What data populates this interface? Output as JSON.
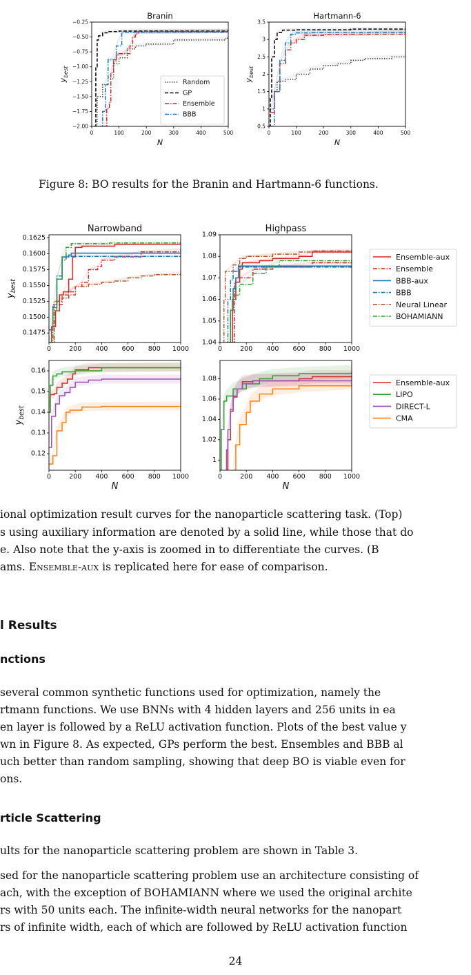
{
  "figure8": {
    "caption": "Figure 8: BO results for the Branin and Hartmann-6 functions."
  },
  "figure9": {
    "caption_lines": [
      "ional optimization result curves for the nanoparticle scattering task. (Top)",
      "s using auxiliary information are denoted by a solid line, while those that do",
      "e.  Also note that the y-axis is zoomed in to differentiate the curves.  (B",
      "ams. "
    ],
    "caption_smallcaps": "Ensemble-aux",
    "caption_tail": " is replicated here for ease of comparison."
  },
  "sections": {
    "results_heading": "l Results",
    "functions_heading": "nctions",
    "functions_lines": [
      " several common synthetic functions used for optimization, namely the",
      "rtmann functions. We use BNNs with 4 hidden layers and 256 units in ea",
      "en layer is followed by a ReLU activation function. Plots of the best value y",
      "wn in Figure 8. As expected, GPs perform the best. Ensembles and BBB al",
      "uch better than random sampling, showing that deep BO is viable even for",
      "ons."
    ],
    "scattering_heading": "rticle Scattering",
    "scattering_line1": "ults for the nanoparticle scattering problem are shown in Table 3.",
    "scattering_lines": [
      "sed for the nanoparticle scattering problem use an architecture consisting of",
      "ach, with the exception of BOHAMIANN where we used the original archite",
      "rs with 50 units each. The infinite-width neural networks for the nanopart",
      "rs of infinite width, each of which are followed by ReLU activation function"
    ]
  },
  "page_number": "24",
  "colors": {
    "ensemble": "#d62728",
    "bbb": "#1f77b4",
    "neural_linear": "#b5562b",
    "bohamiann": "#2ca02c",
    "lipo": "#2ca02c",
    "direct_l": "#9b4fb5",
    "cma": "#ff7f0e",
    "gp": "#000000",
    "random": "#222222"
  },
  "chart_data": [
    {
      "type": "line",
      "title": "Branin",
      "xlabel": "N",
      "ylabel": "y_best",
      "xlim": [
        0,
        500
      ],
      "ylim": [
        -2.0,
        -0.25
      ],
      "xticks": [
        0,
        100,
        200,
        300,
        400,
        500
      ],
      "yticks": [
        -2.0,
        -1.75,
        -1.5,
        -1.25,
        -1.0,
        -0.75,
        -0.5,
        -0.25
      ],
      "ytick_labels": [
        "−2.00",
        "−1.75",
        "−1.50",
        "−1.25",
        "−1.00",
        "−0.75",
        "−0.50",
        "−0.25"
      ],
      "legend": [
        "Random",
        "GP",
        "Ensemble",
        "BBB"
      ],
      "legend_position": "lower right",
      "series": [
        {
          "name": "Random",
          "style": "dotted",
          "x": [
            10,
            20,
            40,
            60,
            80,
            100,
            130,
            160,
            200,
            290,
            300,
            400,
            490,
            500
          ],
          "y": [
            -2.0,
            -1.5,
            -1.3,
            -1.2,
            -0.95,
            -0.85,
            -0.7,
            -0.65,
            -0.62,
            -0.62,
            -0.55,
            -0.55,
            -0.52,
            -0.5
          ]
        },
        {
          "name": "GP",
          "style": "dashed",
          "x": [
            10,
            15,
            20,
            25,
            40,
            60,
            100,
            500
          ],
          "y": [
            -2.0,
            -1.0,
            -0.55,
            -0.48,
            -0.43,
            -0.41,
            -0.4,
            -0.4
          ]
        },
        {
          "name": "Ensemble",
          "style": "dashdot",
          "x": [
            45,
            55,
            65,
            70,
            80,
            90,
            100,
            120,
            140,
            150,
            160,
            170,
            500
          ],
          "y": [
            -2.0,
            -1.7,
            -1.6,
            -1.1,
            -0.9,
            -0.8,
            -0.78,
            -0.78,
            -0.65,
            -0.5,
            -0.45,
            -0.41,
            -0.4
          ]
        },
        {
          "name": "BBB",
          "style": "dashdot",
          "x": [
            30,
            40,
            50,
            60,
            75,
            90,
            110,
            500
          ],
          "y": [
            -2.0,
            -1.75,
            -1.3,
            -0.88,
            -0.88,
            -0.65,
            -0.42,
            -0.4
          ]
        }
      ]
    },
    {
      "type": "line",
      "title": "Hartmann-6",
      "xlabel": "N",
      "ylabel": "y_best",
      "xlim": [
        0,
        500
      ],
      "ylim": [
        0.5,
        3.5
      ],
      "xticks": [
        0,
        100,
        200,
        300,
        400,
        500
      ],
      "yticks": [
        0.5,
        1.0,
        1.5,
        2.0,
        2.5,
        3.0,
        3.5
      ],
      "series": [
        {
          "name": "Random",
          "style": "dotted",
          "x": [
            5,
            20,
            30,
            60,
            100,
            150,
            200,
            250,
            300,
            350,
            450,
            500
          ],
          "y": [
            1.0,
            1.5,
            1.8,
            1.85,
            2.0,
            2.15,
            2.25,
            2.3,
            2.4,
            2.45,
            2.5,
            2.52
          ]
        },
        {
          "name": "GP",
          "style": "dashed",
          "x": [
            0,
            5,
            10,
            20,
            30,
            50,
            100,
            300,
            500
          ],
          "y": [
            0.5,
            1.3,
            2.5,
            3.0,
            3.2,
            3.27,
            3.28,
            3.3,
            3.32
          ]
        },
        {
          "name": "Ensemble",
          "style": "dashdot",
          "x": [
            5,
            20,
            40,
            60,
            80,
            100,
            130,
            200,
            300,
            500
          ],
          "y": [
            0.9,
            1.5,
            2.3,
            2.7,
            2.9,
            3.0,
            3.12,
            3.14,
            3.15,
            3.22
          ]
        },
        {
          "name": "BBB",
          "style": "dashdot",
          "x": [
            5,
            20,
            40,
            60,
            80,
            100,
            150,
            500
          ],
          "y": [
            0.5,
            1.5,
            2.4,
            2.9,
            3.15,
            3.19,
            3.2,
            3.22
          ]
        }
      ]
    },
    {
      "type": "line",
      "title": "Narrowband",
      "xlabel": "",
      "ylabel": "y_best",
      "xlim": [
        0,
        1000
      ],
      "ylim": [
        0.146,
        0.163
      ],
      "xticks": [
        0,
        200,
        400,
        600,
        800,
        1000
      ],
      "yticks": [
        0.1475,
        0.15,
        0.1525,
        0.155,
        0.1575,
        0.16,
        0.1625
      ],
      "ytick_labels": [
        "0.1475",
        "0.1500",
        "0.1525",
        "0.1550",
        "0.1575",
        "0.1600",
        "0.1625"
      ],
      "legend": [
        "Ensemble-aux",
        "Ensemble",
        "BBB-aux",
        "BBB",
        "Neural Linear",
        "BOHAMIANN"
      ],
      "legend_position": "outside right",
      "series": [
        {
          "name": "Ensemble-aux",
          "style": "solid",
          "x": [
            0,
            20,
            50,
            80,
            110,
            150,
            180,
            200,
            250,
            500,
            1000
          ],
          "y": [
            0.146,
            0.1485,
            0.151,
            0.1535,
            0.154,
            0.156,
            0.1595,
            0.161,
            0.1612,
            0.1615,
            0.1617
          ]
        },
        {
          "name": "Ensemble",
          "style": "dashdot",
          "x": [
            0,
            40,
            100,
            150,
            200,
            250,
            300,
            370,
            400,
            500,
            700,
            1000
          ],
          "y": [
            0.146,
            0.152,
            0.153,
            0.154,
            0.1548,
            0.1555,
            0.1575,
            0.158,
            0.159,
            0.1595,
            0.1603,
            0.1607
          ]
        },
        {
          "name": "BBB-aux",
          "style": "solid",
          "x": [
            0,
            30,
            60,
            100,
            150,
            170,
            1000
          ],
          "y": [
            0.148,
            0.1515,
            0.156,
            0.1595,
            0.1598,
            0.1601,
            0.1601
          ]
        },
        {
          "name": "BBB",
          "style": "dashdot",
          "x": [
            0,
            30,
            60,
            100,
            130,
            1000
          ],
          "y": [
            0.148,
            0.152,
            0.1565,
            0.159,
            0.1596,
            0.1596
          ]
        },
        {
          "name": "Neural Linear",
          "style": "dashdot",
          "x": [
            0,
            40,
            100,
            200,
            300,
            400,
            500,
            600,
            700,
            800,
            1000
          ],
          "y": [
            0.146,
            0.1525,
            0.1535,
            0.1548,
            0.1552,
            0.1555,
            0.1557,
            0.1562,
            0.1565,
            0.1567,
            0.157
          ]
        },
        {
          "name": "BOHAMIANN",
          "style": "dashdot",
          "x": [
            0,
            30,
            60,
            100,
            130,
            170,
            460
          ],
          "y": [
            0.146,
            0.151,
            0.156,
            0.1595,
            0.161,
            0.1616,
            0.1617
          ]
        }
      ]
    },
    {
      "type": "line",
      "title": "Highpass",
      "xlabel": "",
      "ylabel": "",
      "xlim": [
        0,
        1000
      ],
      "ylim": [
        1.04,
        1.09
      ],
      "xticks": [
        0,
        200,
        400,
        600,
        800,
        1000
      ],
      "yticks": [
        1.04,
        1.05,
        1.06,
        1.07,
        1.08,
        1.09
      ],
      "series": [
        {
          "name": "Ensemble-aux",
          "style": "solid",
          "x": [
            80,
            95,
            120,
            150,
            170,
            300,
            400,
            600,
            700,
            1000
          ],
          "y": [
            1.04,
            1.06,
            1.068,
            1.074,
            1.077,
            1.078,
            1.079,
            1.08,
            1.082,
            1.082
          ]
        },
        {
          "name": "Ensemble",
          "style": "dashdot",
          "x": [
            90,
            110,
            150,
            250,
            400,
            700,
            1000
          ],
          "y": [
            1.04,
            1.068,
            1.07,
            1.074,
            1.075,
            1.077,
            1.077
          ]
        },
        {
          "name": "BBB-aux",
          "style": "solid",
          "x": [
            60,
            80,
            100,
            120,
            140,
            1000
          ],
          "y": [
            1.04,
            1.055,
            1.065,
            1.07,
            1.0755,
            1.0755
          ]
        },
        {
          "name": "BBB",
          "style": "dashdot",
          "x": [
            40,
            60,
            80,
            100,
            140,
            1000
          ],
          "y": [
            1.04,
            1.06,
            1.069,
            1.073,
            1.075,
            1.075
          ]
        },
        {
          "name": "Neural Linear",
          "style": "dashdot",
          "x": [
            20,
            30,
            40,
            100,
            150,
            200,
            400,
            600,
            700,
            1000
          ],
          "y": [
            1.04,
            1.06,
            1.073,
            1.076,
            1.079,
            1.08,
            1.081,
            1.082,
            1.0825,
            1.083
          ]
        },
        {
          "name": "BOHAMIANN",
          "style": "dashdot",
          "x": [
            50,
            80,
            100,
            150,
            250,
            350,
            450
          ],
          "y": [
            1.04,
            1.055,
            1.062,
            1.067,
            1.072,
            1.075,
            1.078
          ]
        }
      ]
    },
    {
      "type": "line",
      "title": "",
      "xlabel": "N",
      "ylabel": "y_best",
      "xlim": [
        0,
        1000
      ],
      "ylim": [
        0.112,
        0.165
      ],
      "xticks": [
        0,
        200,
        400,
        600,
        800,
        1000
      ],
      "yticks": [
        0.12,
        0.13,
        0.14,
        0.15,
        0.16
      ],
      "legend": [
        "Ensemble-aux",
        "LIPO",
        "DIRECT-L",
        "CMA"
      ],
      "legend_position": "outside right",
      "series": [
        {
          "name": "Ensemble-aux",
          "style": "solid",
          "x": [
            0,
            10,
            40,
            60,
            100,
            140,
            180,
            200,
            300,
            1000
          ],
          "y": [
            0.14,
            0.1485,
            0.149,
            0.152,
            0.154,
            0.156,
            0.1585,
            0.1605,
            0.1615,
            0.1617
          ]
        },
        {
          "name": "LIPO",
          "style": "solid",
          "x": [
            0,
            10,
            30,
            60,
            100,
            200,
            400,
            1000
          ],
          "y": [
            0.14,
            0.153,
            0.1575,
            0.1585,
            0.1595,
            0.16,
            0.1615,
            0.162
          ]
        },
        {
          "name": "DIRECT-L",
          "style": "solid",
          "x": [
            0,
            20,
            50,
            80,
            120,
            160,
            200,
            300,
            400,
            1000
          ],
          "y": [
            0.123,
            0.138,
            0.144,
            0.148,
            0.1495,
            0.152,
            0.1545,
            0.1555,
            0.156,
            0.156
          ]
        },
        {
          "name": "CMA",
          "style": "solid",
          "x": [
            0,
            30,
            60,
            100,
            130,
            160,
            250,
            400,
            1000
          ],
          "y": [
            0.115,
            0.119,
            0.131,
            0.135,
            0.14,
            0.141,
            0.1425,
            0.1428,
            0.143
          ]
        }
      ]
    },
    {
      "type": "line",
      "title": "",
      "xlabel": "N",
      "ylabel": "",
      "xlim": [
        0,
        1000
      ],
      "ylim": [
        0.99,
        1.098
      ],
      "xticks": [
        0,
        200,
        400,
        600,
        800,
        1000
      ],
      "yticks": [
        1.0,
        1.02,
        1.04,
        1.06,
        1.08
      ],
      "series": [
        {
          "name": "Ensemble-aux",
          "style": "solid",
          "x": [
            50,
            60,
            80,
            100,
            130,
            170,
            250,
            600,
            700,
            1000
          ],
          "y": [
            0.99,
            1.02,
            1.048,
            1.062,
            1.07,
            1.077,
            1.078,
            1.08,
            1.082,
            1.082
          ]
        },
        {
          "name": "LIPO",
          "style": "solid",
          "x": [
            0,
            10,
            30,
            50,
            100,
            200,
            300,
            400,
            600,
            1000
          ],
          "y": [
            0.99,
            1.03,
            1.058,
            1.063,
            1.07,
            1.075,
            1.08,
            1.083,
            1.085,
            1.087
          ]
        },
        {
          "name": "DIRECT-L",
          "style": "solid",
          "x": [
            40,
            50,
            60,
            80,
            100,
            130,
            170,
            250,
            1000
          ],
          "y": [
            0.99,
            1.01,
            1.03,
            1.05,
            1.063,
            1.07,
            1.075,
            1.078,
            1.08
          ]
        },
        {
          "name": "CMA",
          "style": "solid",
          "x": [
            100,
            120,
            150,
            200,
            230,
            300,
            400,
            600,
            1000
          ],
          "y": [
            0.99,
            1.015,
            1.035,
            1.047,
            1.058,
            1.065,
            1.07,
            1.073,
            1.076
          ]
        }
      ]
    }
  ]
}
